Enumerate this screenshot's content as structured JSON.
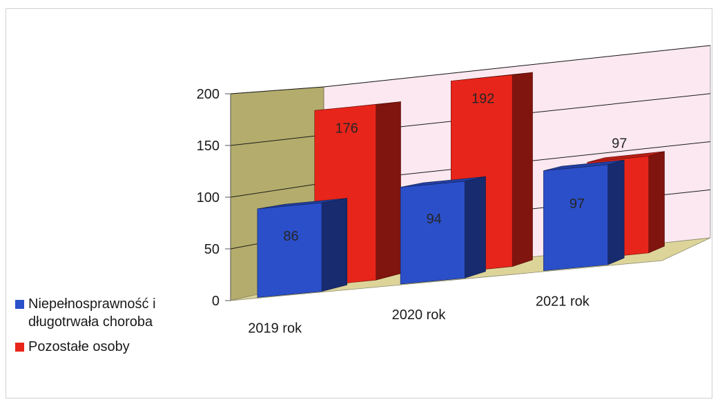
{
  "chart_data": {
    "type": "bar",
    "categories": [
      "2019 rok",
      "2020 rok",
      "2021 rok"
    ],
    "series": [
      {
        "name": "Niepełnosprawność i długotrwała choroba",
        "values": [
          86,
          94,
          97
        ],
        "color": "#2b4fc9"
      },
      {
        "name": "Pozostałe osoby",
        "values": [
          176,
          192,
          97
        ],
        "color": "#e8251a"
      }
    ],
    "yticks": [
      0,
      50,
      100,
      150,
      200
    ],
    "ylim": [
      0,
      200
    ],
    "grid": true,
    "legend_position": "left"
  }
}
